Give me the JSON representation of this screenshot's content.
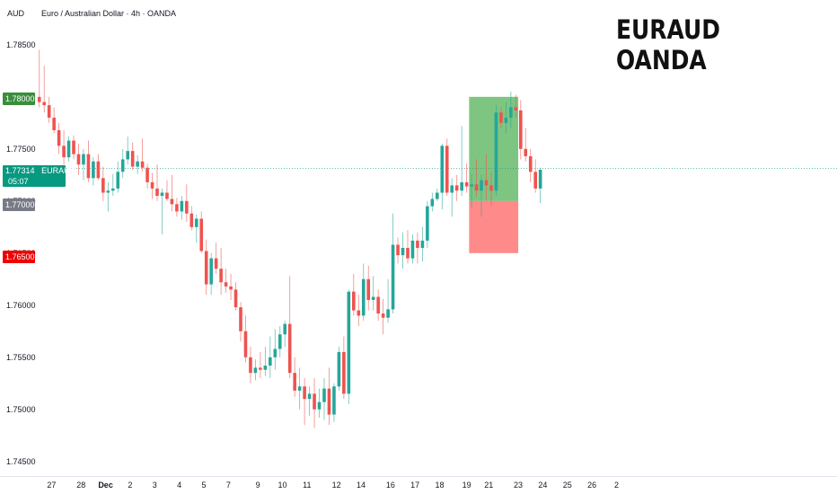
{
  "header": {
    "currency": "AUD",
    "symbol_line": "Euro / Australian Dollar · 4h · OANDA"
  },
  "overlay": {
    "line1": "EURAUD",
    "line2": "OANDA"
  },
  "colors": {
    "up": "#26a69a",
    "down": "#ef5350",
    "profit_zone": "#4caf50",
    "loss_zone": "#ff5252",
    "target_tag": "#388e3c",
    "stop_tag": "#f00000",
    "entry_tag": "#787b86"
  },
  "tags": {
    "target": "1.78000",
    "current_price": "1.77314",
    "current_symbol": "EURAUD",
    "countdown": "05:07",
    "entry": "1.77000",
    "stop": "1.76500"
  },
  "chart_data": {
    "type": "candlestick",
    "y_ticks": [
      "1.78500",
      "1.78000",
      "1.77500",
      "1.77000",
      "1.76500",
      "1.76000",
      "1.75500",
      "1.75000",
      "1.74500"
    ],
    "ylim": [
      1.7436,
      1.7874
    ],
    "x_ticks": [
      "27",
      "28",
      "Dec",
      "2",
      "3",
      "4",
      "5",
      "7",
      "9",
      "10",
      "11",
      "12",
      "14",
      "16",
      "17",
      "18",
      "19",
      "21",
      "23",
      "24",
      "25",
      "26",
      "2"
    ],
    "x_tick_slots": [
      3,
      9,
      14,
      19,
      24,
      29,
      34,
      39,
      45,
      50,
      55,
      61,
      66,
      72,
      77,
      82,
      87.5,
      92,
      98,
      103,
      108,
      113,
      118
    ],
    "current_price": 1.77314,
    "position": {
      "entry": 1.77,
      "target": 1.78,
      "stop": 1.765,
      "slot_start": 88,
      "slot_end": 98
    },
    "candles": [
      [
        1.78,
        1.7845,
        1.779,
        1.7795
      ],
      [
        1.7795,
        1.783,
        1.7785,
        1.7792
      ],
      [
        1.7792,
        1.78,
        1.7775,
        1.778
      ],
      [
        1.778,
        1.779,
        1.7765,
        1.7768
      ],
      [
        1.7768,
        1.7775,
        1.7745,
        1.7753
      ],
      [
        1.7753,
        1.7768,
        1.7735,
        1.7742
      ],
      [
        1.7742,
        1.7762,
        1.7738,
        1.7758
      ],
      [
        1.7758,
        1.7763,
        1.774,
        1.7745
      ],
      [
        1.7745,
        1.7755,
        1.7725,
        1.7735
      ],
      [
        1.7735,
        1.775,
        1.772,
        1.7745
      ],
      [
        1.7745,
        1.7758,
        1.7718,
        1.7722
      ],
      [
        1.7722,
        1.7742,
        1.7715,
        1.7738
      ],
      [
        1.7738,
        1.7745,
        1.772,
        1.7722
      ],
      [
        1.7722,
        1.7733,
        1.77,
        1.7708
      ],
      [
        1.7708,
        1.7718,
        1.769,
        1.771
      ],
      [
        1.771,
        1.7726,
        1.7705,
        1.7712
      ],
      [
        1.7712,
        1.7738,
        1.7708,
        1.7728
      ],
      [
        1.7728,
        1.775,
        1.7722,
        1.774
      ],
      [
        1.774,
        1.7762,
        1.7735,
        1.7748
      ],
      [
        1.7748,
        1.7756,
        1.773,
        1.7733
      ],
      [
        1.7733,
        1.7744,
        1.7726,
        1.7738
      ],
      [
        1.7738,
        1.776,
        1.7728,
        1.7732
      ],
      [
        1.7732,
        1.7736,
        1.7712,
        1.7718
      ],
      [
        1.7718,
        1.7727,
        1.7702,
        1.7712
      ],
      [
        1.7712,
        1.7735,
        1.77,
        1.7705
      ],
      [
        1.7705,
        1.7712,
        1.7668,
        1.7708
      ],
      [
        1.7708,
        1.772,
        1.77,
        1.7702
      ],
      [
        1.7702,
        1.7725,
        1.769,
        1.7697
      ],
      [
        1.7697,
        1.7703,
        1.7685,
        1.769
      ],
      [
        1.769,
        1.7705,
        1.7682,
        1.77
      ],
      [
        1.77,
        1.7716,
        1.768,
        1.7688
      ],
      [
        1.7688,
        1.7695,
        1.7672,
        1.7675
      ],
      [
        1.7675,
        1.7687,
        1.766,
        1.7683
      ],
      [
        1.7683,
        1.769,
        1.765,
        1.7652
      ],
      [
        1.7652,
        1.7663,
        1.761,
        1.762
      ],
      [
        1.762,
        1.765,
        1.761,
        1.7645
      ],
      [
        1.7645,
        1.766,
        1.763,
        1.7635
      ],
      [
        1.7635,
        1.7655,
        1.761,
        1.7622
      ],
      [
        1.7622,
        1.7635,
        1.7612,
        1.7618
      ],
      [
        1.7618,
        1.763,
        1.7605,
        1.7615
      ],
      [
        1.7615,
        1.7622,
        1.7595,
        1.7598
      ],
      [
        1.7598,
        1.7603,
        1.7565,
        1.7575
      ],
      [
        1.7575,
        1.759,
        1.7545,
        1.755
      ],
      [
        1.755,
        1.756,
        1.7525,
        1.7535
      ],
      [
        1.7535,
        1.7548,
        1.7528,
        1.754
      ],
      [
        1.754,
        1.7555,
        1.753,
        1.7538
      ],
      [
        1.7538,
        1.756,
        1.7532,
        1.7542
      ],
      [
        1.7542,
        1.757,
        1.753,
        1.755
      ],
      [
        1.755,
        1.7577,
        1.7538,
        1.7558
      ],
      [
        1.7558,
        1.758,
        1.755,
        1.7572
      ],
      [
        1.7572,
        1.7585,
        1.756,
        1.7582
      ],
      [
        1.7582,
        1.7628,
        1.753,
        1.7535
      ],
      [
        1.7535,
        1.755,
        1.7512,
        1.7518
      ],
      [
        1.7518,
        1.754,
        1.75,
        1.7522
      ],
      [
        1.7522,
        1.753,
        1.7485,
        1.751
      ],
      [
        1.751,
        1.7522,
        1.7494,
        1.7515
      ],
      [
        1.7515,
        1.753,
        1.7482,
        1.75
      ],
      [
        1.75,
        1.752,
        1.7492,
        1.7507
      ],
      [
        1.7507,
        1.753,
        1.749,
        1.752
      ],
      [
        1.752,
        1.754,
        1.7485,
        1.7495
      ],
      [
        1.7495,
        1.7525,
        1.7488,
        1.7522
      ],
      [
        1.7522,
        1.756,
        1.7518,
        1.7555
      ],
      [
        1.7555,
        1.757,
        1.751,
        1.7515
      ],
      [
        1.7515,
        1.7615,
        1.7505,
        1.7613
      ],
      [
        1.7613,
        1.763,
        1.759,
        1.7595
      ],
      [
        1.7595,
        1.761,
        1.758,
        1.759
      ],
      [
        1.759,
        1.764,
        1.7585,
        1.7625
      ],
      [
        1.7625,
        1.7638,
        1.7595,
        1.7605
      ],
      [
        1.7605,
        1.7628,
        1.7595,
        1.7608
      ],
      [
        1.7608,
        1.7615,
        1.7585,
        1.7592
      ],
      [
        1.7592,
        1.7606,
        1.7572,
        1.7588
      ],
      [
        1.7588,
        1.7625,
        1.7583,
        1.7596
      ],
      [
        1.7596,
        1.7688,
        1.7592,
        1.7658
      ],
      [
        1.7658,
        1.7665,
        1.764,
        1.7648
      ],
      [
        1.7648,
        1.767,
        1.7635,
        1.7655
      ],
      [
        1.7655,
        1.7672,
        1.764,
        1.7645
      ],
      [
        1.7645,
        1.7668,
        1.764,
        1.7662
      ],
      [
        1.7662,
        1.767,
        1.764,
        1.7655
      ],
      [
        1.7655,
        1.7675,
        1.7642,
        1.7662
      ],
      [
        1.7662,
        1.77,
        1.7655,
        1.7695
      ],
      [
        1.7695,
        1.7708,
        1.769,
        1.7702
      ],
      [
        1.7702,
        1.7712,
        1.77,
        1.7708
      ],
      [
        1.7708,
        1.7755,
        1.7692,
        1.7753
      ],
      [
        1.7753,
        1.776,
        1.7705,
        1.7708
      ],
      [
        1.7708,
        1.7722,
        1.7685,
        1.7715
      ],
      [
        1.7715,
        1.7725,
        1.77,
        1.771
      ],
      [
        1.771,
        1.7772,
        1.7705,
        1.7718
      ],
      [
        1.7718,
        1.7736,
        1.7708,
        1.7714
      ],
      [
        1.7714,
        1.7726,
        1.7694,
        1.7716
      ],
      [
        1.7716,
        1.774,
        1.7704,
        1.771
      ],
      [
        1.771,
        1.7725,
        1.7685,
        1.772
      ],
      [
        1.772,
        1.7745,
        1.77,
        1.7715
      ],
      [
        1.7715,
        1.7728,
        1.7695,
        1.771
      ],
      [
        1.771,
        1.7792,
        1.7705,
        1.7785
      ],
      [
        1.7785,
        1.779,
        1.777,
        1.7775
      ],
      [
        1.7775,
        1.7795,
        1.7765,
        1.778
      ],
      [
        1.778,
        1.7805,
        1.777,
        1.779
      ],
      [
        1.779,
        1.7802,
        1.778,
        1.7787
      ],
      [
        1.7787,
        1.7797,
        1.774,
        1.775
      ],
      [
        1.775,
        1.777,
        1.7738,
        1.7743
      ],
      [
        1.7743,
        1.775,
        1.7718,
        1.7728
      ],
      [
        1.7728,
        1.774,
        1.7708,
        1.7712
      ],
      [
        1.7712,
        1.7732,
        1.7698,
        1.773
      ]
    ]
  }
}
